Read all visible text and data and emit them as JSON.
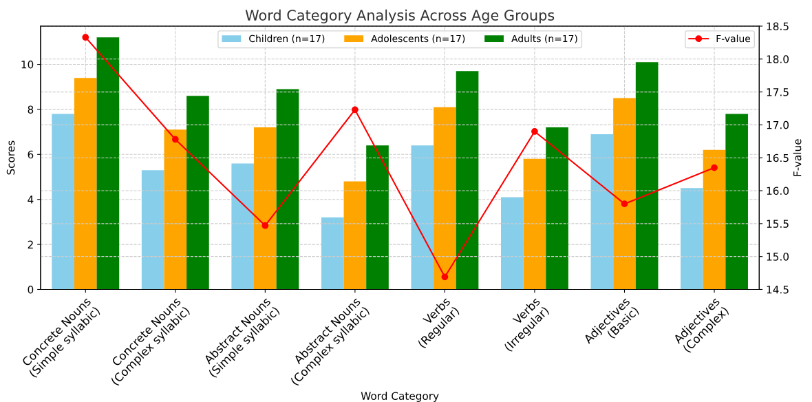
{
  "chart_data": {
    "type": "bar",
    "title": "Word Category Analysis Across Age Groups",
    "xlabel": "Word Category",
    "ylabel": "Scores",
    "y2label": "F-value",
    "categories": [
      "Concrete Nouns\n(Simple syllabic)",
      "Concrete Nouns\n(Complex syllabic)",
      "Abstract Nouns\n(Simple syllabic)",
      "Abstract Nouns\n(Complex syllabic)",
      "Verbs\n(Regular)",
      "Verbs\n(Irregular)",
      "Adjectives\n(Basic)",
      "Adjectives\n(Complex)"
    ],
    "series": [
      {
        "name": "Children (n=17)",
        "color": "#87ceeb",
        "values": [
          7.8,
          5.3,
          5.6,
          3.2,
          6.4,
          4.1,
          6.9,
          4.5
        ]
      },
      {
        "name": "Adolescents (n=17)",
        "color": "#ffa500",
        "values": [
          9.4,
          7.1,
          7.2,
          4.8,
          8.1,
          5.8,
          8.5,
          6.2
        ]
      },
      {
        "name": "Adults (n=17)",
        "color": "#008000",
        "values": [
          11.2,
          8.6,
          8.9,
          6.4,
          9.7,
          7.2,
          10.1,
          7.8
        ]
      },
      {
        "name": "F-value",
        "type": "line",
        "axis": "y2",
        "color": "#ff0000",
        "marker": "circle",
        "values": [
          18.33,
          16.78,
          15.47,
          17.23,
          14.69,
          16.9,
          15.8,
          16.35
        ]
      }
    ],
    "ylim": [
      0,
      11.7
    ],
    "yticks": [
      0,
      2,
      4,
      6,
      8,
      10
    ],
    "y2lim": [
      14.5,
      18.5
    ],
    "y2ticks": [
      14.5,
      {
        "value": 15,
        "label": "15.0"
      },
      15.5,
      {
        "value": 16,
        "label": "16.0"
      },
      16.5,
      {
        "value": 17,
        "label": "17.0"
      },
      17.5,
      {
        "value": 18,
        "label": "18.0"
      },
      18.5
    ],
    "grid": true,
    "legend": "top"
  }
}
